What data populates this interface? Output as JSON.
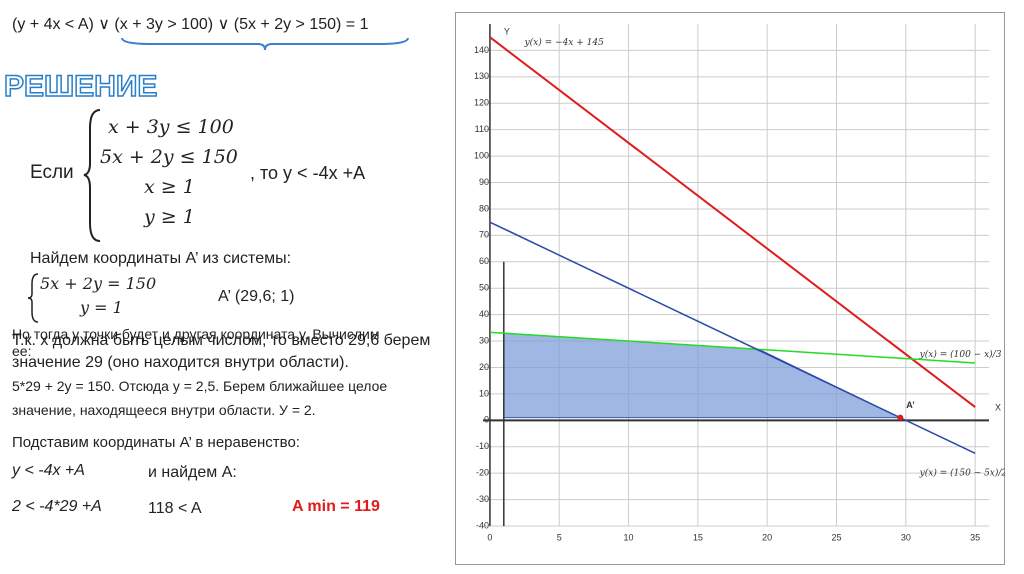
{
  "slide": {
    "formula": "(y + 4x < A) ∨ (x + 3y > 100) ∨ (5x + 2y > 150) = 1",
    "heading": "РЕШЕНИЕ",
    "if_word": "Если",
    "system": [
      "x + 3y ≤ 100",
      "5x + 2y ≤ 150",
      "x ≥ 1",
      "y ≥ 1"
    ],
    "then": ", то y < -4x +A",
    "find": "Найдем координаты A’ из системы:",
    "system2": [
      "5x + 2y = 150",
      "y = 1"
    ],
    "result": "A’ (29,6; 1)",
    "overlap_a": "Но тогда у точки будет и другая координата у. Вычислим ее:",
    "overlap_b": "Т.к. x должна быть целым числом, то вместо 29,6 берем значение 29 (оно находится внутри области).",
    "calc": "5*29 + 2y = 150. Отсюда у = 2,5. Берем ближайшее целое значение, находящееся внутри области. У = 2.",
    "substitute": "Подставим координаты A’ в неравенство:",
    "ineq": "y < -4x +A",
    "find_a": "и найдем A:",
    "ineq2": "2 < -4*29 +A",
    "ineq3": "118 <  A",
    "answer": "A min = 119"
  },
  "chart_data": {
    "type": "line",
    "x_label": "X",
    "y_label": "Y",
    "xlim": [
      -0.5,
      36
    ],
    "ylim": [
      -40,
      150
    ],
    "xticks": [
      0,
      5,
      10,
      15,
      20,
      25,
      30,
      35
    ],
    "yticks": [
      -40,
      -30,
      -20,
      -10,
      0,
      10,
      20,
      30,
      40,
      50,
      60,
      70,
      80,
      90,
      100,
      110,
      120,
      130,
      140
    ],
    "grid": true,
    "series": [
      {
        "name": "y(x) = −4x + 145",
        "color": "#e01b1b",
        "x": [
          0,
          35
        ],
        "values": [
          145,
          5
        ]
      },
      {
        "name": "y(x) = (100 − x)/3",
        "color": "#22dd22",
        "x": [
          0,
          35
        ],
        "values": [
          33.3,
          21.7
        ]
      },
      {
        "name": "y(x) = (150 − 5x)/2",
        "color": "#2a4aa8",
        "x": [
          0,
          35
        ],
        "values": [
          75,
          -12.5
        ]
      }
    ],
    "region": {
      "color": "#7f9fd8",
      "x": [
        1,
        19.4,
        29.6,
        1
      ],
      "values": [
        33,
        26.9,
        1,
        1
      ]
    },
    "guide": {
      "x": [
        1,
        1
      ],
      "values": [
        -40,
        60
      ]
    },
    "point": {
      "label": "A’",
      "color": "#e01b1b",
      "x": 29.6,
      "y": 1
    }
  }
}
